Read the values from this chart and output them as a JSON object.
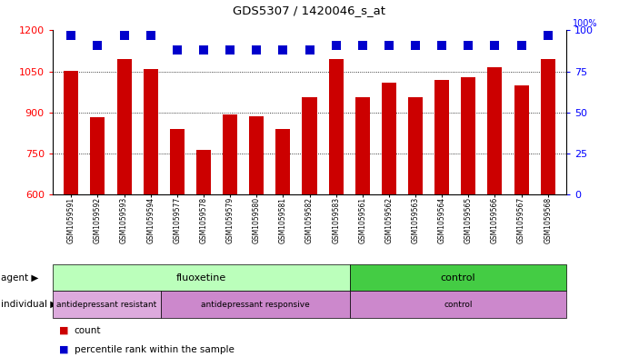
{
  "title": "GDS5307 / 1420046_s_at",
  "samples": [
    "GSM1059591",
    "GSM1059592",
    "GSM1059593",
    "GSM1059594",
    "GSM1059577",
    "GSM1059578",
    "GSM1059579",
    "GSM1059580",
    "GSM1059581",
    "GSM1059582",
    "GSM1059583",
    "GSM1059561",
    "GSM1059562",
    "GSM1059563",
    "GSM1059564",
    "GSM1059565",
    "GSM1059566",
    "GSM1059567",
    "GSM1059568"
  ],
  "bar_values": [
    1053,
    882,
    1095,
    1060,
    840,
    762,
    893,
    885,
    840,
    955,
    1095,
    955,
    1010,
    955,
    1020,
    1030,
    1065,
    1000,
    1095
  ],
  "percentile_values": [
    97,
    91,
    97,
    97,
    88,
    88,
    88,
    88,
    88,
    88,
    91,
    91,
    91,
    91,
    91,
    91,
    91,
    91,
    97
  ],
  "bar_color": "#cc0000",
  "dot_color": "#0000cc",
  "ylim_left": [
    600,
    1200
  ],
  "ylim_right": [
    0,
    100
  ],
  "yticks_left": [
    600,
    750,
    900,
    1050,
    1200
  ],
  "yticks_right": [
    0,
    25,
    50,
    75,
    100
  ],
  "grid_values": [
    750,
    900,
    1050
  ],
  "agent_groups": [
    {
      "label": "fluoxetine",
      "start": 0,
      "end": 11,
      "color": "#bbffbb"
    },
    {
      "label": "control",
      "start": 11,
      "end": 19,
      "color": "#44cc44"
    }
  ],
  "individual_groups": [
    {
      "label": "antidepressant resistant",
      "start": 0,
      "end": 4,
      "color": "#ddaadd"
    },
    {
      "label": "antidepressant responsive",
      "start": 4,
      "end": 11,
      "color": "#cc88cc"
    },
    {
      "label": "control",
      "start": 11,
      "end": 19,
      "color": "#cc88cc"
    }
  ],
  "agent_label": "agent",
  "individual_label": "individual",
  "legend_count_color": "#cc0000",
  "legend_pct_color": "#0000cc",
  "legend_count_label": "count",
  "legend_pct_label": "percentile rank within the sample",
  "bar_width": 0.55,
  "dot_size": 50,
  "dot_marker": "s"
}
